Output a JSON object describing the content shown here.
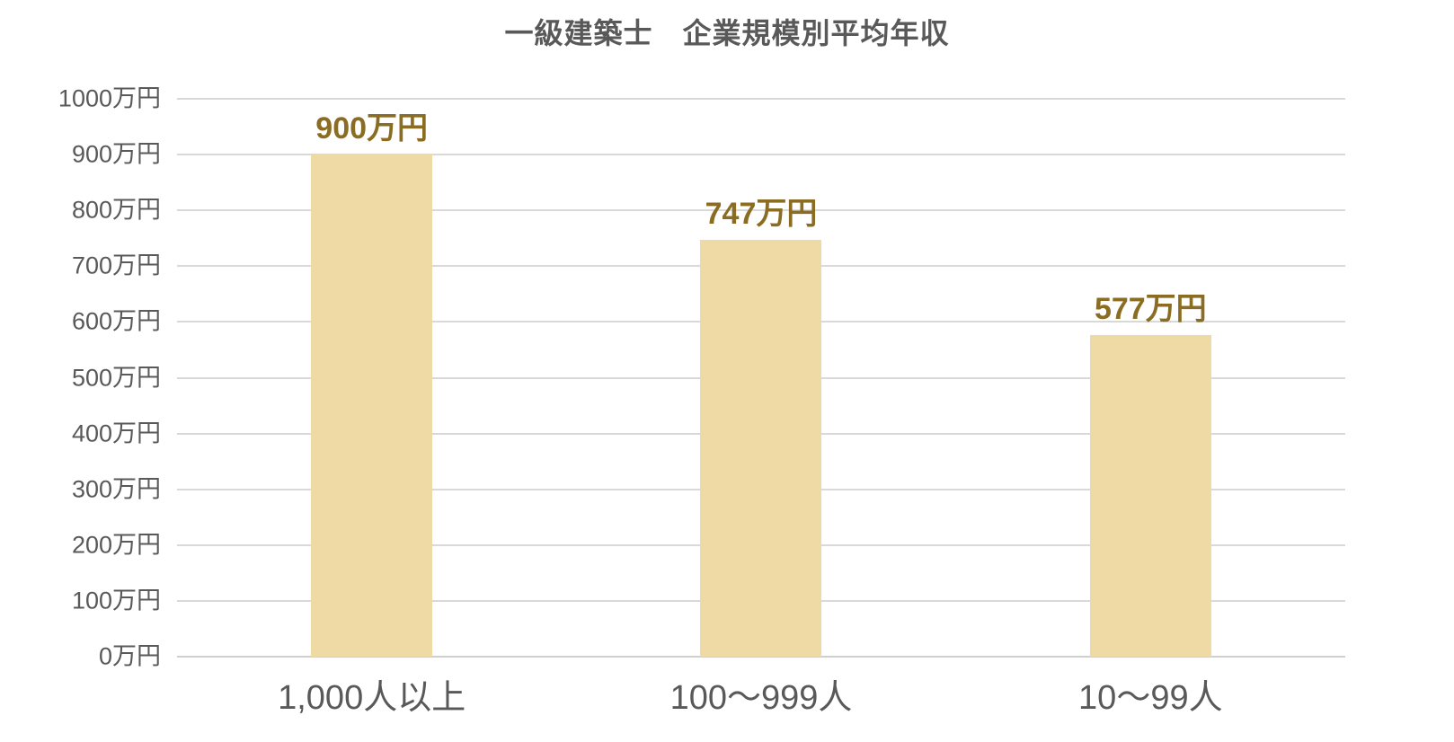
{
  "chart_data": {
    "type": "bar",
    "title": "一級建築士　企業規模別平均年収",
    "categories": [
      "1,000人以上",
      "100〜999人",
      "10〜99人"
    ],
    "values": [
      900,
      747,
      577
    ],
    "value_labels": [
      "900万円",
      "747万円",
      "577万円"
    ],
    "unit": "万円",
    "xlabel": "",
    "ylabel": "",
    "ylim": [
      0,
      1000
    ],
    "ytick_step": 100,
    "ytick_labels": [
      "1000万円",
      "900万円",
      "800万円",
      "700万円",
      "600万円",
      "500万円",
      "400万円",
      "300万円",
      "200万円",
      "100万円",
      "0万円"
    ],
    "grid": "horizontal",
    "legend_position": "none",
    "colors": {
      "bar_fill": "#efd9a4",
      "value_label_text": "#8a6d22",
      "axis_text": "#595959",
      "gridline": "#d9d9d9",
      "background": "#ffffff"
    }
  }
}
